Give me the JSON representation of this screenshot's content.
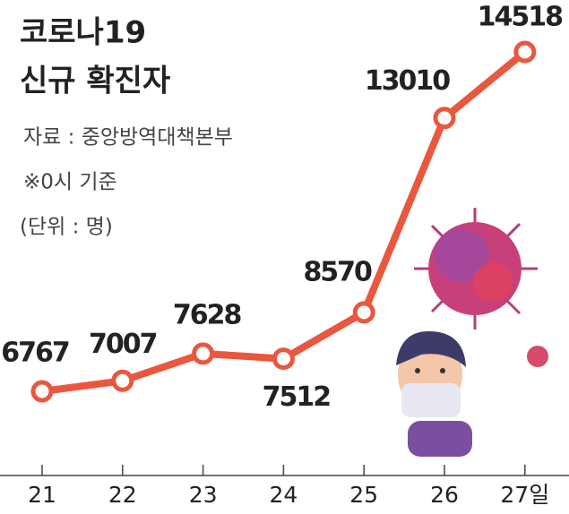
{
  "chart_data": {
    "type": "line",
    "title": [
      "코로나19",
      "신규 확진자"
    ],
    "notes": [
      "자료 : 중앙방역대책본부",
      "※0시 기준",
      "(단위 : 명)"
    ],
    "categories": [
      "21",
      "22",
      "23",
      "24",
      "25",
      "26",
      "27일"
    ],
    "series": [
      {
        "name": "신규 확진자",
        "color": "#e9573f",
        "values": [
          6767,
          7007,
          7628,
          7512,
          8570,
          13010,
          14518
        ]
      }
    ]
  }
}
